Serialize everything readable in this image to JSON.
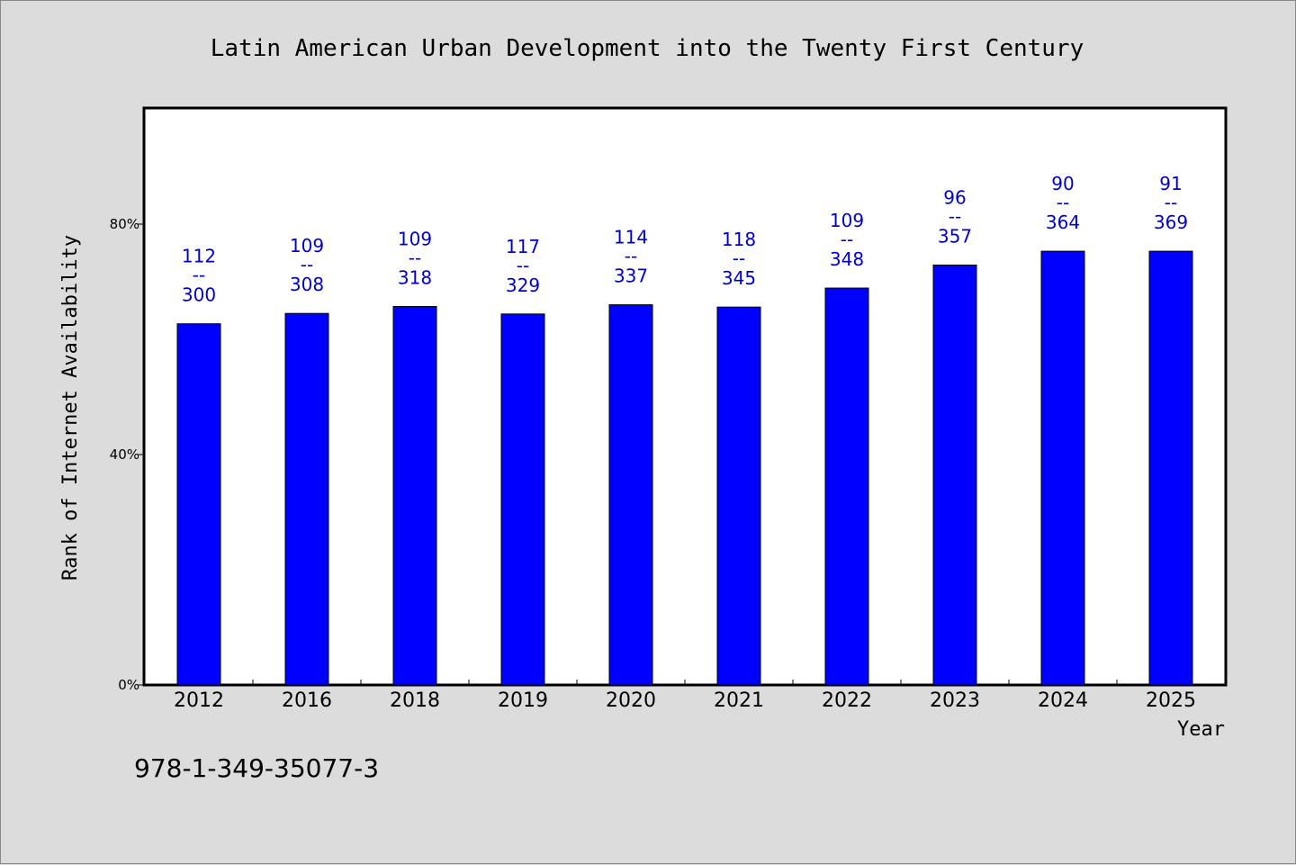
{
  "isbn": "978-1-349-35077-3",
  "chart_data": {
    "type": "bar",
    "title": "Latin American Urban Development into the Twenty First Century",
    "xlabel": "Year",
    "ylabel": "Rank of Internet Availability",
    "ylim": [
      0,
      100
    ],
    "yticks": [
      0,
      40,
      80
    ],
    "ytick_labels": [
      "0%",
      "40%",
      "80%"
    ],
    "categories": [
      "2012",
      "2016",
      "2018",
      "2019",
      "2020",
      "2021",
      "2022",
      "2023",
      "2024",
      "2025"
    ],
    "values": [
      62.7,
      64.5,
      65.7,
      64.4,
      66.0,
      65.6,
      68.9,
      72.9,
      75.3,
      75.3
    ],
    "label_top": [
      "112",
      "109",
      "109",
      "117",
      "114",
      "118",
      "109",
      "96",
      "90",
      "91"
    ],
    "label_sep": "--",
    "label_bottom": [
      "300",
      "308",
      "318",
      "329",
      "337",
      "345",
      "348",
      "357",
      "364",
      "369"
    ],
    "bar_color": "#0000ff",
    "label_color": "#0000cc",
    "grid": false,
    "legend": "none"
  }
}
